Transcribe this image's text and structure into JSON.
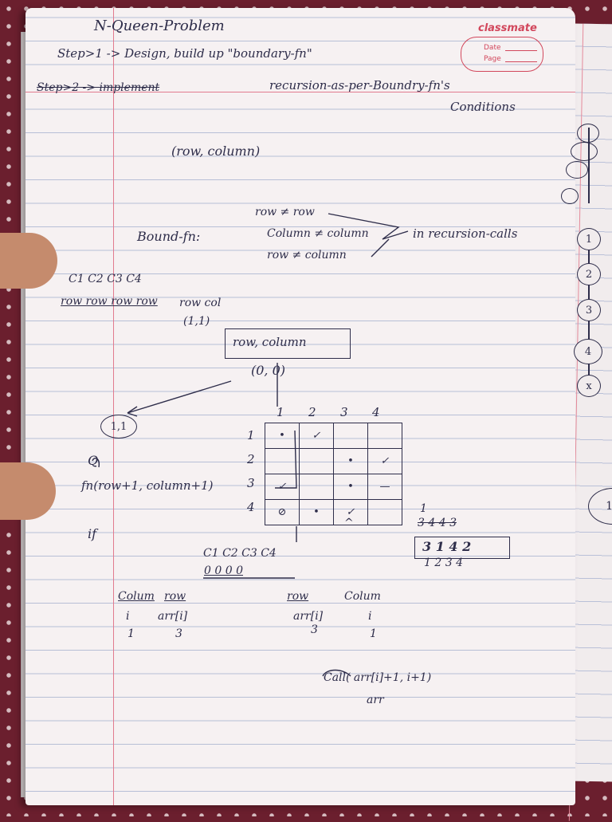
{
  "notebook": {
    "brand": "classmate",
    "stamp_labels": {
      "date": "Date",
      "page": "Page"
    }
  },
  "notes": {
    "title": "N-Queen-Problem",
    "step1": "Step>1 -> Design, build up \"boundary-fn\"",
    "step2_struck": "Step>2 -> implement",
    "step2_rest": "recursion-as-per-Boundry-fn's",
    "conditions": "Conditions",
    "pair": "(row, column)",
    "bound_label": "Bound-fn:",
    "bound_rules": [
      "row ≠ row",
      "Column ≠ column",
      "row ≠ column"
    ],
    "recursion_note": "in recursion-calls",
    "col_headers": "C1 C2 C3 C4",
    "row_labels": "row row row row",
    "row_col": "row col",
    "one_one": "(1,1)",
    "boxed": "row, column",
    "zero_zero": "(0, 0)",
    "circled_11": "1,1",
    "q_mark": "Q",
    "fn_call": "fn(row+1, column+1)",
    "if_text": "if",
    "cols_bottom": "C1 C2 C3 C4",
    "zeros": "0 0 0 0",
    "table_left": {
      "h1": "Colum",
      "h2": "row",
      "r1a": "i",
      "r1b": "arr[i]",
      "r2a": "1",
      "r2b": "3"
    },
    "table_right": {
      "h1": "row",
      "h2": "Colum",
      "r1a": "arr[i]",
      "r1b": "i",
      "r2a": "3",
      "r2b": "1"
    },
    "call": "Call( arr[i]+1, i+1)",
    "arr": "arr",
    "perm_top": "3 4 4 3",
    "perm_box": "3 1 4 2",
    "perm_idx": "1 2 3 4",
    "mark_1": "1",
    "mark_arrow": "^"
  },
  "grid": {
    "col_headers": [
      "1",
      "2",
      "3",
      "4"
    ],
    "row_headers": [
      "1",
      "2",
      "3",
      "4"
    ],
    "cells": [
      [
        "•",
        "✓",
        "",
        ""
      ],
      [
        "",
        "",
        "•",
        "✓"
      ],
      [
        "✓",
        "",
        "•",
        "—"
      ],
      [
        "⊘",
        "•",
        "✓",
        ""
      ]
    ]
  },
  "chain": [
    "1",
    "2",
    "3",
    "4",
    "x"
  ]
}
